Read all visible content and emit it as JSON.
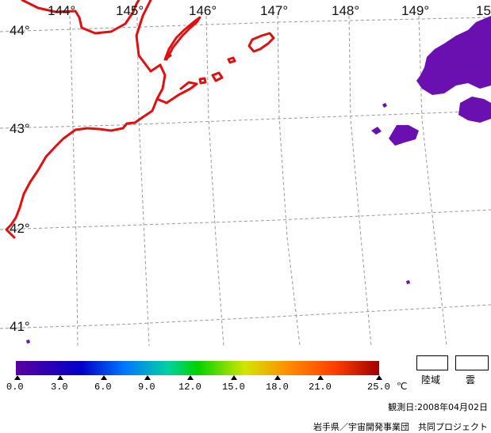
{
  "map": {
    "longitude_labels": [
      "144°",
      "145°",
      "146°",
      "147°",
      "148°",
      "149°",
      "15"
    ],
    "latitude_labels": [
      "44°",
      "43°",
      "42°",
      "41°"
    ]
  },
  "colorbar": {
    "ticks": [
      "0.0",
      "3.0",
      "6.0",
      "9.0",
      "12.0",
      "15.0",
      "18.0",
      "21.0",
      "25.0"
    ],
    "unit": "℃",
    "colors": [
      "#5a00a0",
      "#0000c8",
      "#0078ff",
      "#00d2a0",
      "#00d200",
      "#d2e600",
      "#ff8c00",
      "#ff3c00",
      "#a00000"
    ]
  },
  "legend": {
    "land_label": "陸域",
    "cloud_label": "雲"
  },
  "footer": {
    "observation_date": "観測日:2008年04月02日",
    "credit": "岩手県／宇宙開発事業団　共同プロジェクト"
  },
  "colors": {
    "coastline": "#e01010",
    "cloud": "#6a0fb0",
    "grid": "#999999"
  }
}
